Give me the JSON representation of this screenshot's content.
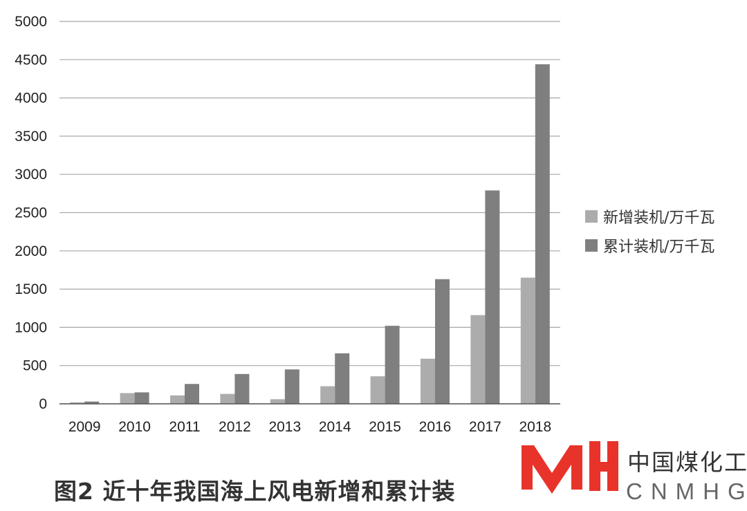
{
  "chart_data": {
    "type": "bar",
    "categories": [
      "2009",
      "2010",
      "2011",
      "2012",
      "2013",
      "2014",
      "2015",
      "2016",
      "2017",
      "2018"
    ],
    "series": [
      {
        "name": "新增装机/万千瓦",
        "color": "#acacac",
        "values": [
          20,
          140,
          110,
          130,
          60,
          230,
          360,
          590,
          1160,
          1650
        ]
      },
      {
        "name": "累计装机/万千瓦",
        "color": "#7f7f7f",
        "values": [
          30,
          150,
          260,
          390,
          450,
          660,
          1020,
          1630,
          2790,
          4440
        ]
      }
    ],
    "title": "",
    "xlabel": "",
    "ylabel": "",
    "ylim": [
      0,
      5000
    ],
    "yticks": [
      0,
      500,
      1000,
      1500,
      2000,
      2500,
      3000,
      3500,
      4000,
      4500,
      5000
    ],
    "grid": true,
    "legend_position": "right"
  },
  "caption": "图2  近十年我国海上风电新增和累计装",
  "logo": {
    "name": "中国煤化工",
    "abbr": "CNMHG"
  }
}
